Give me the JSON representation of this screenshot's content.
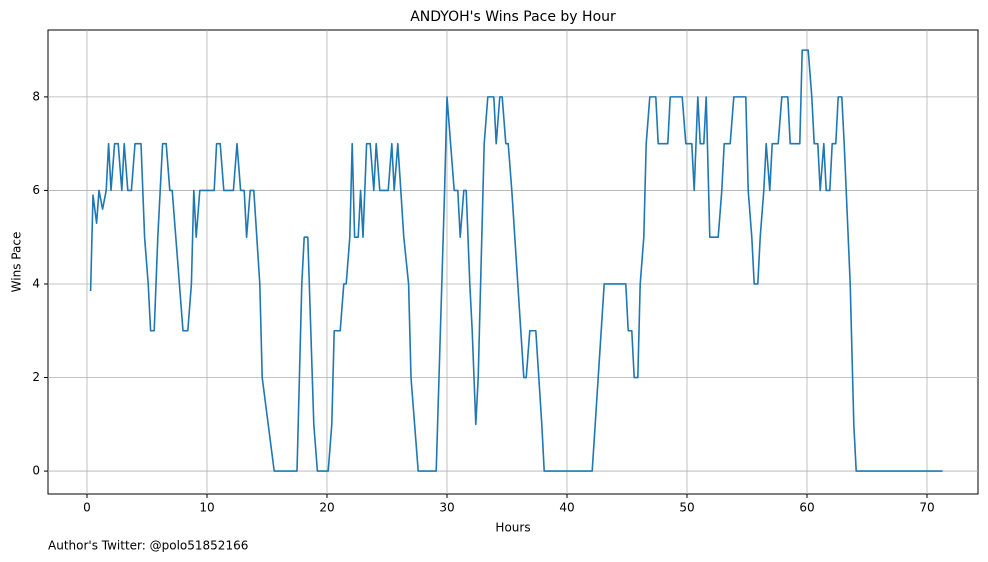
{
  "chart_data": {
    "type": "line",
    "title": "ANDYOH's Wins Pace by Hour",
    "xlabel": "Hours",
    "ylabel": "Wins Pace",
    "note": "Author's Twitter: @polo51852166",
    "color": "#1f77b4",
    "grid": true,
    "xlim": [
      -3.25,
      74.25
    ],
    "ylim": [
      -0.49,
      9.43
    ],
    "xticks": [
      0,
      10,
      20,
      30,
      40,
      50,
      60,
      70
    ],
    "yticks": [
      0,
      2,
      4,
      6,
      8
    ],
    "x": [
      0.3,
      0.5,
      0.8,
      1.0,
      1.3,
      1.6,
      1.8,
      2.0,
      2.3,
      2.6,
      2.9,
      3.1,
      3.4,
      3.7,
      4.0,
      4.5,
      4.8,
      5.1,
      5.3,
      5.6,
      5.9,
      6.1,
      6.3,
      6.6,
      6.9,
      7.1,
      7.4,
      7.7,
      8.0,
      8.4,
      8.7,
      8.9,
      9.1,
      9.4,
      9.6,
      10.6,
      10.8,
      11.1,
      11.4,
      12.2,
      12.5,
      12.8,
      13.1,
      13.3,
      13.6,
      13.9,
      14.4,
      14.6,
      15.3,
      15.6,
      17.5,
      17.9,
      18.1,
      18.4,
      18.9,
      19.2,
      20.1,
      20.4,
      20.6,
      21.1,
      21.4,
      21.6,
      21.9,
      22.1,
      22.3,
      22.6,
      22.8,
      23.0,
      23.3,
      23.6,
      23.9,
      24.1,
      24.4,
      25.1,
      25.4,
      25.6,
      25.9,
      26.4,
      26.8,
      27.0,
      27.6,
      29.1,
      29.8,
      30.0,
      30.3,
      30.6,
      30.9,
      31.1,
      31.4,
      31.6,
      31.9,
      32.1,
      32.4,
      32.6,
      33.1,
      33.4,
      33.9,
      34.1,
      34.4,
      34.6,
      34.9,
      35.1,
      35.4,
      35.9,
      36.4,
      36.6,
      36.9,
      37.4,
      37.9,
      38.1,
      42.1,
      42.6,
      43.1,
      44.9,
      45.1,
      45.4,
      45.6,
      45.9,
      46.1,
      46.4,
      46.6,
      46.9,
      47.4,
      47.6,
      48.4,
      48.6,
      49.6,
      49.9,
      50.4,
      50.6,
      50.9,
      51.1,
      51.4,
      51.6,
      51.9,
      52.6,
      52.9,
      53.1,
      53.6,
      53.9,
      54.9,
      55.1,
      55.4,
      55.6,
      55.9,
      56.1,
      56.4,
      56.6,
      56.9,
      57.1,
      57.6,
      57.9,
      58.4,
      58.6,
      59.4,
      59.6,
      60.1,
      60.4,
      60.6,
      60.9,
      61.1,
      61.4,
      61.6,
      61.9,
      62.1,
      62.4,
      62.6,
      62.9,
      63.1,
      63.6,
      63.9,
      64.1,
      71.3
    ],
    "values": [
      3.85,
      5.9,
      5.3,
      6.0,
      5.6,
      6.0,
      7.0,
      6.0,
      7.0,
      7.0,
      6.0,
      7.0,
      6.0,
      6.0,
      7.0,
      7.0,
      5.0,
      4.0,
      3.0,
      3.0,
      5.0,
      6.0,
      7.0,
      7.0,
      6.0,
      6.0,
      5.0,
      4.0,
      3.0,
      3.0,
      4.0,
      6.0,
      5.0,
      6.0,
      6.0,
      6.0,
      7.0,
      7.0,
      6.0,
      6.0,
      7.0,
      6.0,
      6.0,
      5.0,
      6.0,
      6.0,
      4.0,
      2.0,
      0.6,
      0,
      0,
      4.0,
      5.0,
      5.0,
      1.0,
      0,
      0,
      1.0,
      3.0,
      3.0,
      4.0,
      4.0,
      5.0,
      7.0,
      5.0,
      5.0,
      6.0,
      5.0,
      7.0,
      7.0,
      6.0,
      7.0,
      6.0,
      6.0,
      7.0,
      6.0,
      7.0,
      5.0,
      4.0,
      2.0,
      0,
      0,
      6.0,
      8.0,
      7.0,
      6.0,
      6.0,
      5.0,
      6.0,
      6.0,
      4.0,
      3.0,
      1.0,
      2.0,
      7.0,
      8.0,
      8.0,
      7.0,
      8.0,
      8.0,
      7.0,
      7.0,
      6.0,
      4.0,
      2.0,
      2.0,
      3.0,
      3.0,
      1.0,
      0,
      0,
      2.0,
      4.0,
      4.0,
      3.0,
      3.0,
      2.0,
      2.0,
      4.0,
      5.0,
      7.0,
      8.0,
      8.0,
      7.0,
      7.0,
      8.0,
      8.0,
      7.0,
      7.0,
      6.0,
      8.0,
      7.0,
      7.0,
      8.0,
      5.0,
      5.0,
      6.0,
      7.0,
      7.0,
      8.0,
      8.0,
      6.0,
      5.0,
      4.0,
      4.0,
      5.0,
      6.0,
      7.0,
      6.0,
      7.0,
      7.0,
      8.0,
      8.0,
      7.0,
      7.0,
      9.0,
      9.0,
      8.0,
      7.0,
      7.0,
      6.0,
      7.0,
      6.0,
      6.0,
      7.0,
      7.0,
      8.0,
      8.0,
      7.0,
      4.0,
      1.0,
      0,
      0
    ]
  }
}
